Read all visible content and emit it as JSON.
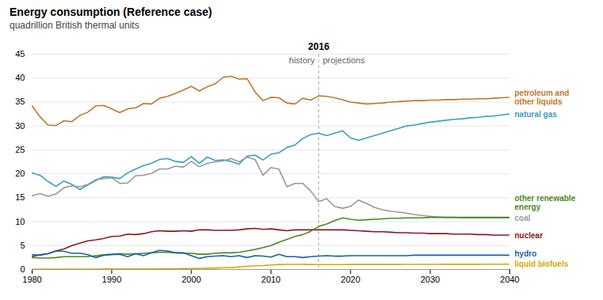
{
  "chart_data": {
    "type": "line",
    "title": "Energy consumption (Reference case)",
    "subtitle": "quadrillion British thermal units",
    "x": [
      1980,
      1981,
      1982,
      1983,
      1984,
      1985,
      1986,
      1987,
      1988,
      1989,
      1990,
      1991,
      1992,
      1993,
      1994,
      1995,
      1996,
      1997,
      1998,
      1999,
      2000,
      2001,
      2002,
      2003,
      2004,
      2005,
      2006,
      2007,
      2008,
      2009,
      2010,
      2011,
      2012,
      2013,
      2014,
      2015,
      2016,
      2017,
      2018,
      2019,
      2020,
      2021,
      2022,
      2023,
      2024,
      2025,
      2026,
      2027,
      2028,
      2029,
      2030,
      2031,
      2032,
      2033,
      2034,
      2035,
      2036,
      2037,
      2038,
      2039,
      2040
    ],
    "series": [
      {
        "name": "petroleum and\nother liquids",
        "color": "#c07830",
        "values": [
          34.2,
          31.9,
          30.2,
          30.1,
          31.1,
          30.9,
          32.2,
          32.9,
          34.2,
          34.3,
          33.6,
          32.8,
          33.6,
          33.8,
          34.7,
          34.6,
          35.8,
          36.2,
          36.8,
          37.5,
          38.3,
          37.3,
          38.2,
          38.8,
          40.2,
          40.4,
          39.8,
          39.9,
          37.1,
          35.3,
          36.0,
          35.9,
          34.8,
          34.6,
          35.8,
          35.4,
          36.3,
          36.2,
          35.9,
          35.5,
          35.0,
          34.8,
          34.6,
          34.7,
          34.8,
          35.0,
          35.1,
          35.2,
          35.3,
          35.3,
          35.4,
          35.4,
          35.5,
          35.5,
          35.6,
          35.6,
          35.7,
          35.7,
          35.8,
          35.9,
          36.0
        ]
      },
      {
        "name": "natural gas",
        "color": "#3a9ec2",
        "values": [
          20.2,
          19.7,
          18.4,
          17.4,
          18.5,
          17.8,
          16.7,
          17.7,
          18.6,
          19.4,
          19.3,
          19.0,
          20.2,
          21.0,
          21.7,
          22.2,
          23.0,
          23.2,
          22.6,
          22.4,
          23.6,
          22.2,
          23.5,
          22.8,
          22.9,
          22.6,
          22.0,
          23.7,
          23.9,
          22.9,
          24.1,
          24.4,
          25.5,
          26.0,
          27.4,
          28.2,
          28.5,
          28.0,
          28.5,
          29.0,
          27.5,
          27.0,
          27.5,
          28.0,
          28.5,
          29.0,
          29.5,
          30.0,
          30.2,
          30.5,
          30.8,
          31.0,
          31.2,
          31.4,
          31.5,
          31.7,
          31.8,
          32.0,
          32.1,
          32.3,
          32.5
        ]
      },
      {
        "name": "coal",
        "color": "#999999",
        "values": [
          15.4,
          15.9,
          15.3,
          15.8,
          17.1,
          17.5,
          17.3,
          17.8,
          18.8,
          19.0,
          19.2,
          18.0,
          18.1,
          19.6,
          19.7,
          20.1,
          21.0,
          21.0,
          21.6,
          21.4,
          22.6,
          21.5,
          22.2,
          22.5,
          22.7,
          23.2,
          22.5,
          23.5,
          23.0,
          19.7,
          21.3,
          21.0,
          17.3,
          18.0,
          18.0,
          16.4,
          14.2,
          14.8,
          13.2,
          12.8,
          13.2,
          14.5,
          13.8,
          13.0,
          12.5,
          12.2,
          12.0,
          11.8,
          11.5,
          11.3,
          11.1,
          11.0,
          10.9,
          10.9,
          10.8,
          10.8,
          10.8,
          10.8,
          10.8,
          10.8,
          10.8
        ]
      },
      {
        "name": "nuclear",
        "color": "#8b1a1a",
        "values": [
          2.7,
          3.1,
          3.3,
          3.9,
          4.3,
          5.0,
          5.5,
          6.0,
          6.2,
          6.5,
          6.9,
          7.0,
          7.4,
          7.3,
          7.5,
          7.9,
          8.1,
          8.0,
          8.0,
          8.1,
          8.0,
          8.3,
          8.3,
          8.2,
          8.2,
          8.2,
          8.3,
          8.5,
          8.6,
          8.4,
          8.5,
          8.3,
          8.1,
          8.3,
          8.3,
          8.3,
          8.3,
          8.3,
          8.3,
          8.3,
          8.2,
          8.1,
          8.0,
          7.9,
          7.9,
          7.8,
          7.7,
          7.7,
          7.6,
          7.6,
          7.5,
          7.5,
          7.5,
          7.4,
          7.4,
          7.4,
          7.3,
          7.3,
          7.2,
          7.2,
          7.2
        ]
      },
      {
        "name": "other renewable\nenergy",
        "color": "#4a8a20",
        "values": [
          2.5,
          2.4,
          2.4,
          2.5,
          2.7,
          2.7,
          2.7,
          2.7,
          2.9,
          3.1,
          3.2,
          3.3,
          3.2,
          3.3,
          3.4,
          3.5,
          3.6,
          3.6,
          3.5,
          3.4,
          3.4,
          3.2,
          3.2,
          3.4,
          3.5,
          3.5,
          3.6,
          3.9,
          4.2,
          4.6,
          5.0,
          5.7,
          6.3,
          6.9,
          7.3,
          8.0,
          9.0,
          9.5,
          10.2,
          10.8,
          10.5,
          10.3,
          10.4,
          10.5,
          10.6,
          10.7,
          10.7,
          10.8,
          10.8,
          10.8,
          10.9,
          10.9,
          10.9,
          10.9,
          10.9,
          10.9,
          10.9,
          10.9,
          10.9,
          10.9,
          10.9
        ]
      },
      {
        "name": "hydro",
        "color": "#1a5fa8",
        "values": [
          3.1,
          3.0,
          3.3,
          3.9,
          3.8,
          3.4,
          3.4,
          3.1,
          2.5,
          3.0,
          3.1,
          3.2,
          2.7,
          3.3,
          2.9,
          3.5,
          4.0,
          3.9,
          3.5,
          3.5,
          2.9,
          2.3,
          2.7,
          2.8,
          2.9,
          2.7,
          2.9,
          2.5,
          2.9,
          2.8,
          2.6,
          3.2,
          2.7,
          2.7,
          2.5,
          2.7,
          2.8,
          2.9,
          2.8,
          2.8,
          2.9,
          2.9,
          2.9,
          2.9,
          2.9,
          2.9,
          2.9,
          2.9,
          3.0,
          3.0,
          3.0,
          3.0,
          3.0,
          3.0,
          3.0,
          3.0,
          3.0,
          3.0,
          3.0,
          3.0,
          3.0
        ]
      },
      {
        "name": "liquid biofuels",
        "color": "#d4aa00",
        "values": [
          0.07,
          0.07,
          0.07,
          0.08,
          0.08,
          0.09,
          0.09,
          0.09,
          0.09,
          0.1,
          0.1,
          0.1,
          0.1,
          0.11,
          0.12,
          0.13,
          0.14,
          0.16,
          0.17,
          0.19,
          0.21,
          0.24,
          0.27,
          0.31,
          0.37,
          0.44,
          0.55,
          0.65,
          0.78,
          0.83,
          0.96,
          1.05,
          1.08,
          1.07,
          1.08,
          1.05,
          1.04,
          1.04,
          1.04,
          1.04,
          1.05,
          1.05,
          1.05,
          1.05,
          1.06,
          1.06,
          1.06,
          1.07,
          1.07,
          1.08,
          1.08,
          1.08,
          1.09,
          1.09,
          1.1,
          1.1,
          1.1,
          1.11,
          1.11,
          1.12,
          1.12
        ]
      }
    ],
    "xlim": [
      1980,
      2040
    ],
    "xticks": [
      1980,
      1990,
      2000,
      2010,
      2020,
      2030,
      2040
    ],
    "ylim": [
      0,
      45
    ],
    "yticks": [
      0,
      5,
      10,
      15,
      20,
      25,
      30,
      35,
      40,
      45
    ],
    "grid": true,
    "annotations": [
      {
        "x": 2016,
        "text": "2016",
        "line_style": "dashed"
      },
      {
        "x": 2016,
        "text": "history",
        "side": "left"
      },
      {
        "x": 2016,
        "text": "projections",
        "side": "right"
      }
    ]
  }
}
